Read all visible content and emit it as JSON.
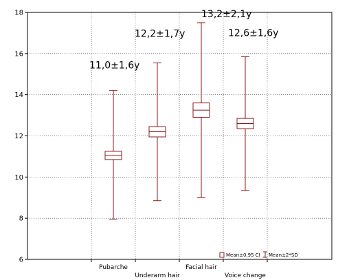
{
  "chart_data": {
    "type": "boxplot",
    "title": "",
    "xlabel": "",
    "ylabel": "",
    "ylim": [
      6,
      18
    ],
    "yticks": [
      6,
      8,
      10,
      12,
      14,
      16,
      18
    ],
    "grid": true,
    "categories": [
      "Pubarche",
      "Underarm hair",
      "Facial hair",
      "Voice change"
    ],
    "series": [
      {
        "category": "Pubarche",
        "mean": 11.05,
        "ci_low": 10.85,
        "ci_high": 11.25,
        "sd_low": 7.95,
        "sd_high": 14.2,
        "annotation": "11,0±1,6y"
      },
      {
        "category": "Underarm hair",
        "mean": 12.2,
        "ci_low": 11.95,
        "ci_high": 12.45,
        "sd_low": 8.85,
        "sd_high": 15.55,
        "annotation": "12,2±1,7y"
      },
      {
        "category": "Facial hair",
        "mean": 13.25,
        "ci_low": 12.9,
        "ci_high": 13.6,
        "sd_low": 9.0,
        "sd_high": 17.5,
        "annotation": "13,2±2,1y"
      },
      {
        "category": "Voice change",
        "mean": 12.6,
        "ci_low": 12.35,
        "ci_high": 12.85,
        "sd_low": 9.35,
        "sd_high": 15.85,
        "annotation": "12,6±1,6y"
      }
    ],
    "legend": {
      "position": "bottom-right",
      "box_label": "Mean±0,95 CI",
      "whisker_label": "Mean±2*SD"
    },
    "colors": {
      "box": "#8b1a1a",
      "grid": "#000000",
      "frame": "#000000"
    }
  }
}
